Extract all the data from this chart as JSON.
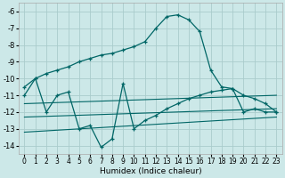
{
  "xlabel": "Humidex (Indice chaleur)",
  "background_color": "#cce8e8",
  "grid_color": "#aacccc",
  "line_color": "#006666",
  "xlim": [
    -0.5,
    23.5
  ],
  "ylim": [
    -14.5,
    -5.5
  ],
  "yticks": [
    -6,
    -7,
    -8,
    -9,
    -10,
    -11,
    -12,
    -13,
    -14
  ],
  "xticks": [
    0,
    1,
    2,
    3,
    4,
    5,
    6,
    7,
    8,
    9,
    10,
    11,
    12,
    13,
    14,
    15,
    16,
    17,
    18,
    19,
    20,
    21,
    22,
    23
  ],
  "curve_peak_x": [
    0,
    1,
    2,
    3,
    4,
    5,
    6,
    7,
    8,
    9,
    10,
    11,
    12,
    13,
    14,
    15,
    16,
    17,
    18,
    19,
    20,
    21,
    22,
    23
  ],
  "curve_peak_y": [
    -10.5,
    -10.0,
    -9.7,
    -9.5,
    -9.3,
    -9.0,
    -8.8,
    -8.6,
    -8.5,
    -8.3,
    -8.1,
    -7.8,
    -7.0,
    -6.3,
    -6.2,
    -6.5,
    -7.2,
    -9.5,
    -10.5,
    -10.6,
    -11.0,
    -11.2,
    -11.5,
    -12.0
  ],
  "curve_jagged_x": [
    0,
    1,
    2,
    3,
    4,
    5,
    6,
    7,
    8,
    9,
    10,
    11,
    12,
    13,
    14,
    15,
    16,
    17,
    18,
    19,
    20,
    21,
    22,
    23
  ],
  "curve_jagged_y": [
    -11.0,
    -10.0,
    -12.0,
    -11.0,
    -10.8,
    -13.0,
    -12.8,
    -14.1,
    -13.6,
    -10.3,
    -13.0,
    -12.5,
    -12.2,
    -11.8,
    -11.5,
    -11.2,
    -11.0,
    -10.8,
    -10.7,
    -10.6,
    -12.0,
    -11.8,
    -12.0,
    -12.0
  ],
  "line1": {
    "x": [
      0,
      23
    ],
    "y": [
      -11.5,
      -11.0
    ]
  },
  "line2": {
    "x": [
      0,
      23
    ],
    "y": [
      -12.3,
      -11.8
    ]
  },
  "line3": {
    "x": [
      0,
      23
    ],
    "y": [
      -13.2,
      -12.3
    ]
  }
}
